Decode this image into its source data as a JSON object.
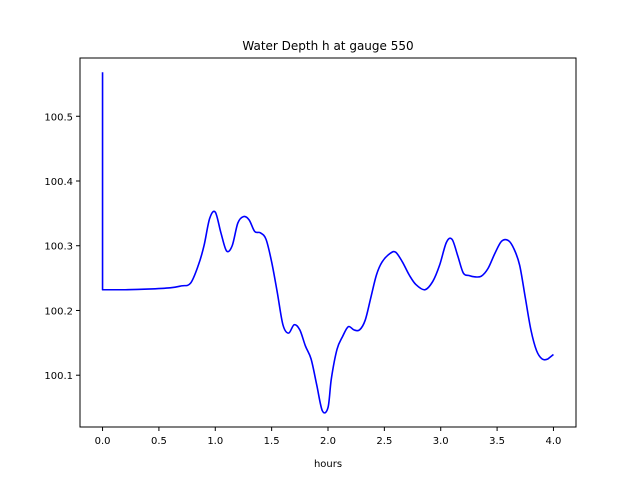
{
  "chart_data": {
    "type": "line",
    "title": "Water Depth h at gauge 550",
    "xlabel": "hours",
    "ylabel": "",
    "xlim": [
      -0.2,
      4.2
    ],
    "ylim": [
      100.02,
      100.59
    ],
    "xticks": [
      0.0,
      0.5,
      1.0,
      1.5,
      2.0,
      2.5,
      3.0,
      3.5,
      4.0
    ],
    "xtick_labels": [
      "0.0",
      "0.5",
      "1.0",
      "1.5",
      "2.0",
      "2.5",
      "3.0",
      "3.5",
      "4.0"
    ],
    "yticks": [
      100.1,
      100.2,
      100.3,
      100.4,
      100.5
    ],
    "ytick_labels": [
      "100.1",
      "100.2",
      "100.3",
      "100.4",
      "100.5"
    ],
    "grid": false,
    "legend": "none",
    "series": [
      {
        "color": "#0000ff",
        "x": [
          0.0,
          0.0,
          0.0,
          0.2,
          0.4,
          0.6,
          0.7,
          0.78,
          0.85,
          0.9,
          0.95,
          1.0,
          1.05,
          1.1,
          1.15,
          1.2,
          1.25,
          1.3,
          1.35,
          1.4,
          1.45,
          1.5,
          1.55,
          1.6,
          1.65,
          1.7,
          1.75,
          1.8,
          1.85,
          1.9,
          1.95,
          2.0,
          2.03,
          2.08,
          2.13,
          2.18,
          2.23,
          2.28,
          2.33,
          2.38,
          2.43,
          2.48,
          2.55,
          2.6,
          2.66,
          2.72,
          2.78,
          2.86,
          2.93,
          2.99,
          3.05,
          3.1,
          3.15,
          3.2,
          3.25,
          3.3,
          3.36,
          3.42,
          3.48,
          3.54,
          3.6,
          3.65,
          3.7,
          3.75,
          3.8,
          3.85,
          3.9,
          3.95,
          4.0
        ],
        "y": [
          100.568,
          100.232,
          100.232,
          100.232,
          100.233,
          100.235,
          100.238,
          100.242,
          100.27,
          100.3,
          100.342,
          100.352,
          100.32,
          100.292,
          100.3,
          100.335,
          100.345,
          100.34,
          100.322,
          100.32,
          100.31,
          100.275,
          100.228,
          100.178,
          100.165,
          100.178,
          100.17,
          100.145,
          100.125,
          100.085,
          100.045,
          100.05,
          100.095,
          100.14,
          100.16,
          100.175,
          100.17,
          100.17,
          100.185,
          100.22,
          100.255,
          100.275,
          100.288,
          100.29,
          100.275,
          100.255,
          100.24,
          100.232,
          100.245,
          100.27,
          100.305,
          100.31,
          100.285,
          100.258,
          100.254,
          100.252,
          100.253,
          100.265,
          100.288,
          100.307,
          100.308,
          100.295,
          100.27,
          100.22,
          100.17,
          100.138,
          100.125,
          100.125,
          100.132
        ]
      }
    ]
  }
}
